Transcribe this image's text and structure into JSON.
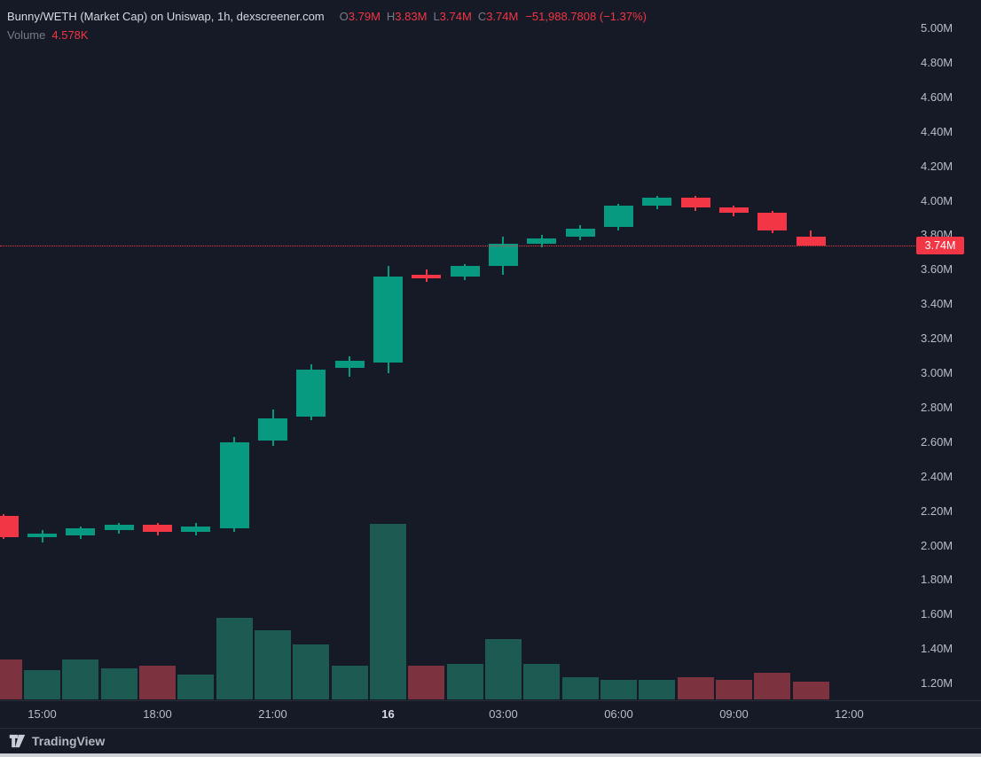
{
  "colors": {
    "bg": "#151a26",
    "up": "#089981",
    "down": "#f23645",
    "vol_up": "#1d5a52",
    "vol_down": "#7c333f",
    "axis_text": "#b8bdc9",
    "separator": "#2a2e39",
    "tag_bg": "#f23645"
  },
  "legend": {
    "title": "Bunny/WETH (Market Cap) on Uniswap, 1h, dexscreener.com",
    "o_label": "O",
    "o": "3.79M",
    "h_label": "H",
    "h": "3.83M",
    "l_label": "L",
    "l": "3.74M",
    "c_label": "C",
    "c": "3.74M",
    "change": "−51,988.7808 (−1.37%)",
    "volume_label": "Volume",
    "volume_value": "4.578K"
  },
  "price_tag": {
    "text": "3.74M",
    "value": 3.74
  },
  "price_axis": {
    "labels": [
      "5.00M",
      "4.80M",
      "4.60M",
      "4.40M",
      "4.20M",
      "4.00M",
      "3.80M",
      "3.60M",
      "3.40M",
      "3.20M",
      "3.00M",
      "2.80M",
      "2.60M",
      "2.40M",
      "2.20M",
      "2.00M",
      "1.80M",
      "1.60M",
      "1.40M",
      "1.20M"
    ],
    "max": 5.0,
    "min": 1.2,
    "step": 0.2
  },
  "time_axis": {
    "ticks": [
      {
        "label": "15:00",
        "index": 1,
        "bold": false
      },
      {
        "label": "18:00",
        "index": 4,
        "bold": false
      },
      {
        "label": "21:00",
        "index": 7,
        "bold": false
      },
      {
        "label": "16",
        "index": 10,
        "bold": true
      },
      {
        "label": "03:00",
        "index": 13,
        "bold": false
      },
      {
        "label": "06:00",
        "index": 16,
        "bold": false
      },
      {
        "label": "09:00",
        "index": 19,
        "bold": false
      },
      {
        "label": "12:00",
        "index": 22,
        "bold": false
      }
    ]
  },
  "chart_data": {
    "type": "candlestick",
    "title": "Bunny/WETH (Market Cap) on Uniswap, 1h, dexscreener.com",
    "pair": "Bunny/WETH",
    "metric": "Market Cap",
    "exchange": "Uniswap",
    "interval": "1h",
    "source": "dexscreener.com",
    "y_unit": "M (market cap)",
    "ylim": [
      1.1,
      5.0
    ],
    "volume_unit": "K",
    "last_close": 3.74,
    "candles": [
      {
        "t": "14:00",
        "o": 2.17,
        "h": 2.18,
        "l": 2.04,
        "c": 2.05,
        "v": 10.3
      },
      {
        "t": "15:00",
        "o": 2.05,
        "h": 2.09,
        "l": 2.02,
        "c": 2.07,
        "v": 7.4
      },
      {
        "t": "16:00",
        "o": 2.06,
        "h": 2.11,
        "l": 2.04,
        "c": 2.1,
        "v": 10.3
      },
      {
        "t": "17:00",
        "o": 2.09,
        "h": 2.13,
        "l": 2.07,
        "c": 2.12,
        "v": 8.0
      },
      {
        "t": "18:00",
        "o": 2.12,
        "h": 2.13,
        "l": 2.06,
        "c": 2.08,
        "v": 8.7
      },
      {
        "t": "19:00",
        "o": 2.08,
        "h": 2.13,
        "l": 2.06,
        "c": 2.11,
        "v": 6.4
      },
      {
        "t": "20:00",
        "o": 2.1,
        "h": 2.63,
        "l": 2.08,
        "c": 2.6,
        "v": 20.9
      },
      {
        "t": "21:00",
        "o": 2.61,
        "h": 2.79,
        "l": 2.58,
        "c": 2.74,
        "v": 17.7
      },
      {
        "t": "22:00",
        "o": 2.75,
        "h": 3.05,
        "l": 2.73,
        "c": 3.02,
        "v": 14.1
      },
      {
        "t": "23:00",
        "o": 3.03,
        "h": 3.1,
        "l": 2.98,
        "c": 3.07,
        "v": 8.7
      },
      {
        "t": "00:00",
        "o": 3.06,
        "h": 3.62,
        "l": 3.0,
        "c": 3.56,
        "v": 45.0
      },
      {
        "t": "01:00",
        "o": 3.57,
        "h": 3.6,
        "l": 3.53,
        "c": 3.55,
        "v": 8.7
      },
      {
        "t": "02:00",
        "o": 3.56,
        "h": 3.63,
        "l": 3.54,
        "c": 3.62,
        "v": 9.1
      },
      {
        "t": "03:00",
        "o": 3.62,
        "h": 3.79,
        "l": 3.57,
        "c": 3.75,
        "v": 15.5
      },
      {
        "t": "04:00",
        "o": 3.75,
        "h": 3.8,
        "l": 3.73,
        "c": 3.78,
        "v": 9.1
      },
      {
        "t": "05:00",
        "o": 3.79,
        "h": 3.86,
        "l": 3.77,
        "c": 3.84,
        "v": 5.7
      },
      {
        "t": "06:00",
        "o": 3.85,
        "h": 3.98,
        "l": 3.83,
        "c": 3.97,
        "v": 5.0
      },
      {
        "t": "07:00",
        "o": 3.97,
        "h": 4.03,
        "l": 3.95,
        "c": 4.02,
        "v": 5.0
      },
      {
        "t": "08:00",
        "o": 4.02,
        "h": 4.03,
        "l": 3.94,
        "c": 3.96,
        "v": 5.7
      },
      {
        "t": "09:00",
        "o": 3.96,
        "h": 3.97,
        "l": 3.91,
        "c": 3.93,
        "v": 5.0
      },
      {
        "t": "10:00",
        "o": 3.93,
        "h": 3.94,
        "l": 3.81,
        "c": 3.83,
        "v": 6.8
      },
      {
        "t": "11:00",
        "o": 3.79,
        "h": 3.83,
        "l": 3.74,
        "c": 3.74,
        "v": 4.578
      }
    ]
  },
  "footer": {
    "brand": "TradingView"
  }
}
